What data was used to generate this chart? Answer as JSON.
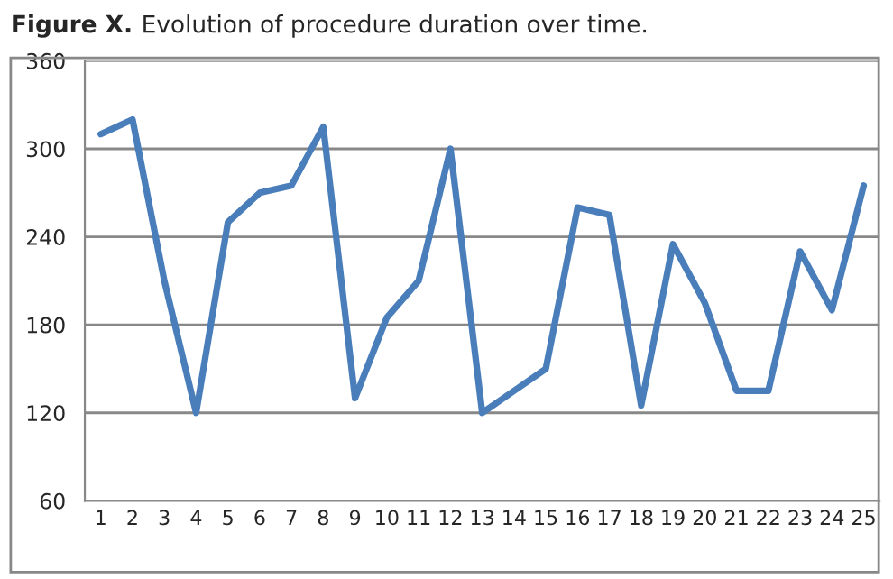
{
  "chart_data": {
    "type": "line",
    "title": "Figure X.",
    "subtitle": "Evolution of procedure duration over time.",
    "categories": [
      "1",
      "2",
      "3",
      "4",
      "5",
      "6",
      "7",
      "8",
      "9",
      "10",
      "11",
      "12",
      "13",
      "14",
      "15",
      "16",
      "17",
      "18",
      "19",
      "20",
      "21",
      "22",
      "23",
      "24",
      "25"
    ],
    "series": [
      {
        "color": "#4a7ebb",
        "values": [
          310,
          320,
          210,
          120,
          250,
          270,
          275,
          315,
          130,
          185,
          210,
          300,
          120,
          135,
          150,
          260,
          255,
          125,
          235,
          195,
          135,
          135,
          230,
          190,
          275
        ]
      }
    ],
    "ylim": [
      60,
      360
    ],
    "yticks": [
      60,
      120,
      180,
      240,
      300,
      360
    ],
    "grid": "y",
    "legend": false,
    "marker": "none",
    "line_style": "solid"
  }
}
